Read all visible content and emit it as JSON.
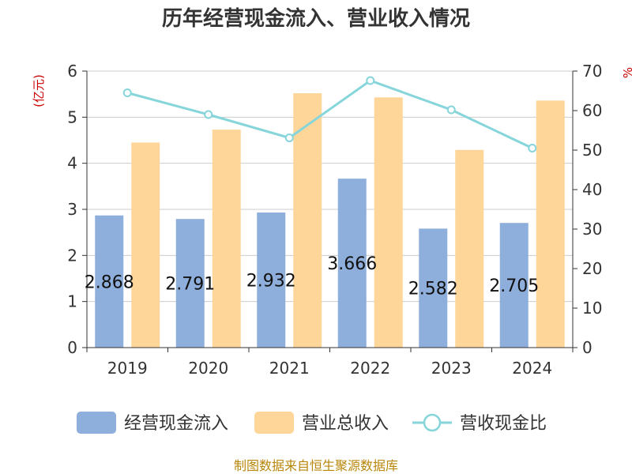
{
  "chart_data": {
    "type": "bar",
    "title": "历年经营现金流入、营业收入情况",
    "categories": [
      "2019",
      "2020",
      "2021",
      "2022",
      "2023",
      "2024"
    ],
    "y_left": {
      "label": "(亿元)",
      "ylim": [
        0,
        6
      ],
      "ticks": [
        "0",
        "1",
        "2",
        "3",
        "4",
        "5",
        "6"
      ]
    },
    "y_right": {
      "label": "%",
      "ylim": [
        0,
        70
      ],
      "ticks": [
        "0",
        "10",
        "20",
        "30",
        "40",
        "50",
        "60",
        "70"
      ]
    },
    "series": [
      {
        "name": "经营现金流入",
        "type": "bar",
        "axis": "left",
        "color": "#8eaedb",
        "values": [
          2.868,
          2.791,
          2.932,
          3.666,
          2.582,
          2.705
        ],
        "labels": [
          "2.868",
          "2.791",
          "2.932",
          "3.666",
          "2.582",
          "2.705"
        ]
      },
      {
        "name": "营业总收入",
        "type": "bar",
        "axis": "left",
        "color": "#ffd699",
        "values": [
          4.45,
          4.73,
          5.52,
          5.43,
          4.29,
          5.36
        ]
      },
      {
        "name": "营收现金比",
        "type": "line",
        "axis": "right",
        "color": "#86d5da",
        "values": [
          64.5,
          59.0,
          53.1,
          67.6,
          60.2,
          50.5
        ]
      }
    ],
    "grid": true,
    "legend_position": "bottom",
    "source": "制图数据来自恒生聚源数据库"
  }
}
